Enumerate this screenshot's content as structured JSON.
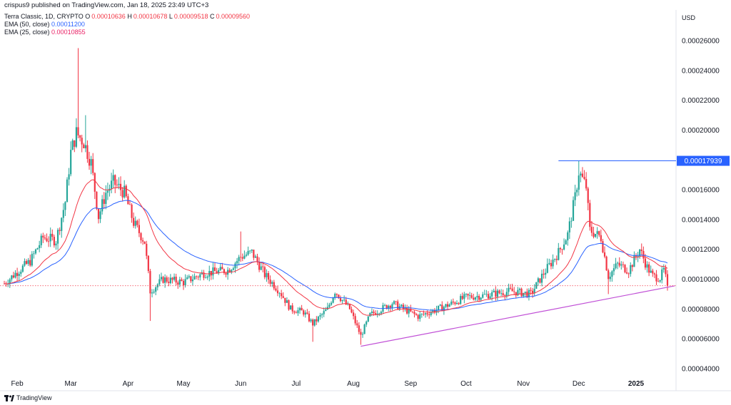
{
  "header": {
    "published": "crispus9 published on TradingView.com, Jan 18, 2025 23:49 UTC+3",
    "symbol": "Terra Classic, 1D, CRYPTO",
    "ohlc": {
      "O": "0.00010636",
      "H": "0.00010678",
      "L": "0.00009518",
      "C": "0.00009560"
    },
    "ema50_label": "EMA (50, close)",
    "ema50_value": "0.00011200",
    "ema25_label": "EMA (25, close)",
    "ema25_value": "0.00010855",
    "currency": "USD"
  },
  "footer": {
    "brand": "TradingView"
  },
  "colors": {
    "up": "#26a69a",
    "down": "#f23645",
    "ema50": "#2962ff",
    "ema25": "#f23645",
    "trend": "#c04fd6",
    "peak": "#2962ff"
  },
  "chart_data": {
    "type": "candlestick",
    "title": "",
    "ylabel": "USD",
    "ylim": [
      3.5e-05,
      0.00027
    ],
    "y_ticks": [
      "0.00004000",
      "0.00006000",
      "0.00008000",
      "0.00010000",
      "0.00012000",
      "0.00014000",
      "0.00016000",
      "0.00018000",
      "0.00020000",
      "0.00022000",
      "0.00024000",
      "0.00026000"
    ],
    "x_ticks": [
      "Feb",
      "Mar",
      "Apr",
      "May",
      "Jun",
      "Jul",
      "Aug",
      "Sep",
      "Oct",
      "Nov",
      "Dec",
      "2025"
    ],
    "peak_label": "0.00017939",
    "peak_value": 0.00017939,
    "last_close": 9.56e-05,
    "anchors": [
      {
        "date": "2024-01-25",
        "close": 9.7e-05
      },
      {
        "date": "2024-02-01",
        "close": 0.000105
      },
      {
        "date": "2024-02-08",
        "close": 0.000112
      },
      {
        "date": "2024-02-15",
        "close": 0.000128
      },
      {
        "date": "2024-02-22",
        "close": 0.000126
      },
      {
        "date": "2024-02-27",
        "close": 0.000152
      },
      {
        "date": "2024-03-01",
        "close": 0.000185
      },
      {
        "date": "2024-03-04",
        "close": 0.000198
      },
      {
        "date": "2024-03-08",
        "close": 0.000192
      },
      {
        "date": "2024-03-12",
        "close": 0.000178
      },
      {
        "date": "2024-03-16",
        "close": 0.000142
      },
      {
        "date": "2024-03-20",
        "close": 0.000158
      },
      {
        "date": "2024-03-24",
        "close": 0.000165
      },
      {
        "date": "2024-03-30",
        "close": 0.000158
      },
      {
        "date": "2024-04-04",
        "close": 0.000138
      },
      {
        "date": "2024-04-10",
        "close": 0.000125
      },
      {
        "date": "2024-04-13",
        "close": 9.2e-05
      },
      {
        "date": "2024-04-20",
        "close": 0.0001
      },
      {
        "date": "2024-05-01",
        "close": 9.8e-05
      },
      {
        "date": "2024-05-12",
        "close": 0.000104
      },
      {
        "date": "2024-05-25",
        "close": 0.000106
      },
      {
        "date": "2024-06-01",
        "close": 0.000115
      },
      {
        "date": "2024-06-07",
        "close": 0.000118
      },
      {
        "date": "2024-06-14",
        "close": 0.000103
      },
      {
        "date": "2024-06-22",
        "close": 9.2e-05
      },
      {
        "date": "2024-06-28",
        "close": 8e-05
      },
      {
        "date": "2024-07-05",
        "close": 7.8e-05
      },
      {
        "date": "2024-07-10",
        "close": 7e-05
      },
      {
        "date": "2024-07-18",
        "close": 8e-05
      },
      {
        "date": "2024-07-22",
        "close": 9.2e-05
      },
      {
        "date": "2024-07-30",
        "close": 8e-05
      },
      {
        "date": "2024-08-05",
        "close": 6.2e-05
      },
      {
        "date": "2024-08-10",
        "close": 7.6e-05
      },
      {
        "date": "2024-08-22",
        "close": 8.4e-05
      },
      {
        "date": "2024-09-05",
        "close": 7.5e-05
      },
      {
        "date": "2024-09-20",
        "close": 8.2e-05
      },
      {
        "date": "2024-10-01",
        "close": 8.8e-05
      },
      {
        "date": "2024-10-10",
        "close": 8.9e-05
      },
      {
        "date": "2024-10-25",
        "close": 9.2e-05
      },
      {
        "date": "2024-11-05",
        "close": 9e-05
      },
      {
        "date": "2024-11-12",
        "close": 0.000104
      },
      {
        "date": "2024-11-20",
        "close": 0.000118
      },
      {
        "date": "2024-11-25",
        "close": 0.00013
      },
      {
        "date": "2024-11-29",
        "close": 0.000155
      },
      {
        "date": "2024-12-01",
        "close": 0.000172
      },
      {
        "date": "2024-12-05",
        "close": 0.000162
      },
      {
        "date": "2024-12-07",
        "close": 0.000133
      },
      {
        "date": "2024-12-13",
        "close": 0.000128
      },
      {
        "date": "2024-12-17",
        "close": 0.000102
      },
      {
        "date": "2024-12-22",
        "close": 0.00011
      },
      {
        "date": "2024-12-28",
        "close": 0.000106
      },
      {
        "date": "2025-01-03",
        "close": 0.00012
      },
      {
        "date": "2025-01-07",
        "close": 0.000108
      },
      {
        "date": "2025-01-10",
        "close": 0.000102
      },
      {
        "date": "2025-01-14",
        "close": 0.000101
      },
      {
        "date": "2025-01-16",
        "close": 0.000106
      },
      {
        "date": "2025-01-18",
        "close": 9.56e-05
      }
    ],
    "trendline": [
      {
        "date": "2024-08-05",
        "value": 5.5e-05
      },
      {
        "date": "2025-01-18",
        "value": 9.55e-05
      }
    ]
  }
}
